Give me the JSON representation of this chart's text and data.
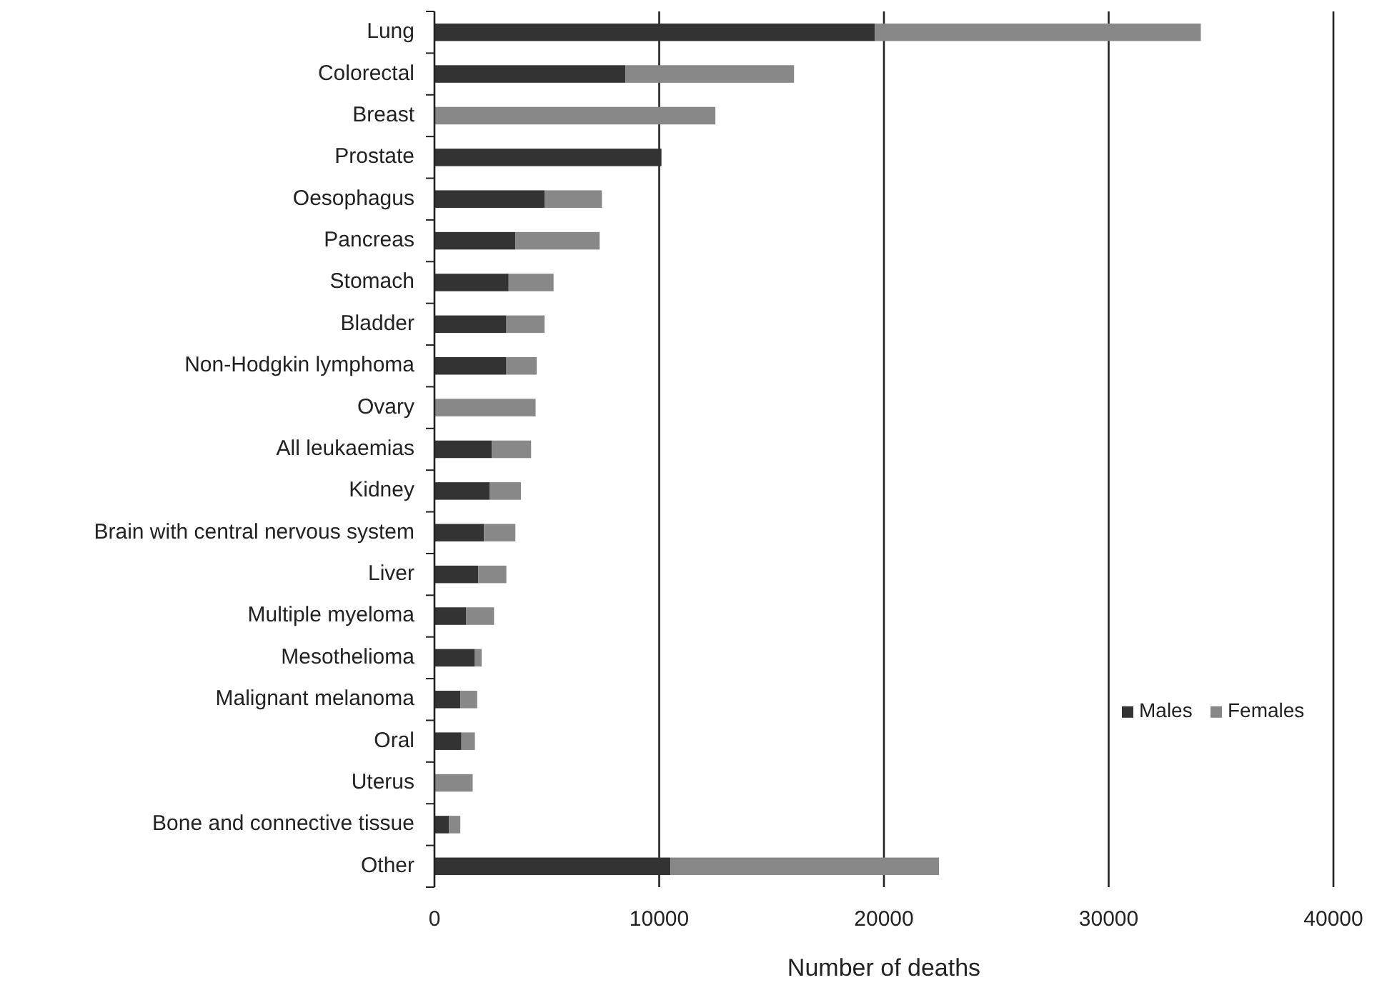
{
  "chart_data": {
    "type": "bar",
    "orientation": "horizontal",
    "stacked": true,
    "xlabel": "Number of deaths",
    "categories": [
      "Lung",
      "Colorectal",
      "Breast",
      "Prostate",
      "Oesophagus",
      "Pancreas",
      "Stomach",
      "Bladder",
      "Non-Hodgkin lymphoma",
      "Ovary",
      "All leukaemias",
      "Kidney",
      "Brain with central nervous system",
      "Liver",
      "Multiple myeloma",
      "Mesothelioma",
      "Malignant melanoma",
      "Oral",
      "Uterus",
      "Bone and connective tissue",
      "Other"
    ],
    "series": [
      {
        "name": "Males",
        "color": "#333333",
        "values": [
          19600,
          8500,
          0,
          10100,
          4900,
          3600,
          3300,
          3200,
          3200,
          0,
          2550,
          2450,
          2200,
          1950,
          1400,
          1800,
          1150,
          1200,
          0,
          650,
          10500
        ]
      },
      {
        "name": "Females",
        "color": "#888888",
        "values": [
          14500,
          7500,
          12500,
          0,
          2550,
          3750,
          2000,
          1700,
          1350,
          4500,
          1750,
          1400,
          1400,
          1250,
          1250,
          300,
          750,
          600,
          1700,
          500,
          11950
        ]
      }
    ],
    "xlim": [
      0,
      40000
    ],
    "xticks": [
      0,
      10000,
      20000,
      30000,
      40000
    ],
    "grid": "x",
    "legend": "right"
  }
}
